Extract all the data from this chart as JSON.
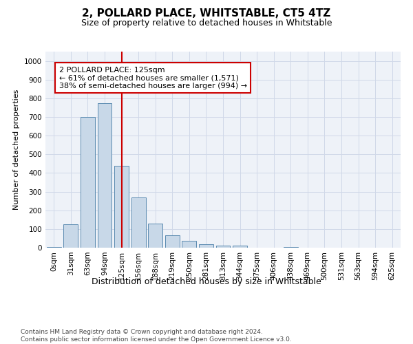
{
  "title": "2, POLLARD PLACE, WHITSTABLE, CT5 4TZ",
  "subtitle": "Size of property relative to detached houses in Whitstable",
  "xlabel": "Distribution of detached houses by size in Whitstable",
  "ylabel": "Number of detached properties",
  "categories": [
    "0sqm",
    "31sqm",
    "63sqm",
    "94sqm",
    "125sqm",
    "156sqm",
    "188sqm",
    "219sqm",
    "250sqm",
    "281sqm",
    "313sqm",
    "344sqm",
    "375sqm",
    "406sqm",
    "438sqm",
    "469sqm",
    "500sqm",
    "531sqm",
    "563sqm",
    "594sqm",
    "625sqm"
  ],
  "values": [
    5,
    125,
    700,
    775,
    440,
    270,
    130,
    68,
    37,
    20,
    12,
    10,
    0,
    0,
    5,
    0,
    0,
    0,
    0,
    0,
    0
  ],
  "bar_color": "#c8d8e8",
  "bar_edge_color": "#5a8ab0",
  "vline_x": 4,
  "vline_color": "#cc0000",
  "annotation_text": "2 POLLARD PLACE: 125sqm\n← 61% of detached houses are smaller (1,571)\n38% of semi-detached houses are larger (994) →",
  "annotation_box_color": "#ffffff",
  "annotation_box_edge": "#cc0000",
  "ylim": [
    0,
    1050
  ],
  "yticks": [
    0,
    100,
    200,
    300,
    400,
    500,
    600,
    700,
    800,
    900,
    1000
  ],
  "grid_color": "#d0d8e8",
  "background_color": "#eef2f8",
  "footer_line1": "Contains HM Land Registry data © Crown copyright and database right 2024.",
  "footer_line2": "Contains public sector information licensed under the Open Government Licence v3.0.",
  "title_fontsize": 11,
  "subtitle_fontsize": 9,
  "xlabel_fontsize": 9,
  "ylabel_fontsize": 8,
  "tick_fontsize": 7.5,
  "footer_fontsize": 6.5
}
